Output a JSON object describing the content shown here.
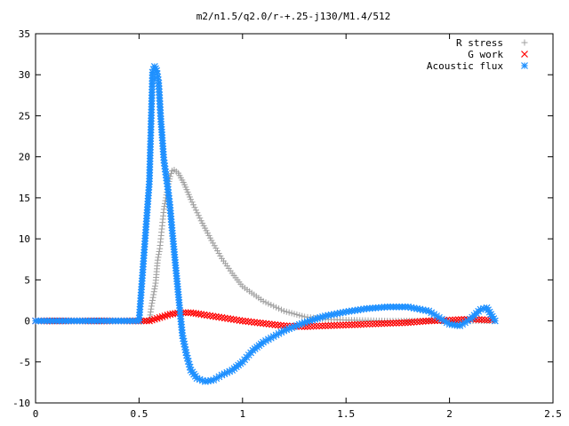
{
  "chart_data": {
    "type": "scatter",
    "title": "m2/n1.5/q2.0/r-+.25-j130/M1.4/512",
    "xlabel": "",
    "ylabel": "",
    "xlim": [
      0,
      2.5
    ],
    "ylim": [
      -10,
      35
    ],
    "x_ticks": [
      "0",
      "0.5",
      "1",
      "1.5",
      "2",
      "2.5"
    ],
    "y_ticks": [
      "-10",
      "-5",
      "0",
      "5",
      "10",
      "15",
      "20",
      "25",
      "30",
      "35"
    ],
    "grid": false,
    "legend_position": "top-right",
    "series": [
      {
        "name": "R stress",
        "marker": "plus",
        "color": "#a0a0a0",
        "points": [
          [
            0.0,
            0.0
          ],
          [
            0.1,
            0.0
          ],
          [
            0.2,
            0.0
          ],
          [
            0.3,
            0.0
          ],
          [
            0.4,
            0.0
          ],
          [
            0.5,
            0.0
          ],
          [
            0.55,
            0.0
          ],
          [
            0.56,
            1.8
          ],
          [
            0.57,
            3.2
          ],
          [
            0.58,
            4.6
          ],
          [
            0.585,
            6.0
          ],
          [
            0.59,
            7.4
          ],
          [
            0.6,
            8.8
          ],
          [
            0.605,
            10.0
          ],
          [
            0.61,
            11.2
          ],
          [
            0.615,
            12.4
          ],
          [
            0.62,
            13.6
          ],
          [
            0.63,
            15.0
          ],
          [
            0.64,
            16.4
          ],
          [
            0.65,
            17.6
          ],
          [
            0.66,
            18.3
          ],
          [
            0.67,
            18.4
          ],
          [
            0.69,
            18.0
          ],
          [
            0.72,
            16.6
          ],
          [
            0.75,
            14.8
          ],
          [
            0.8,
            12.2
          ],
          [
            0.85,
            9.8
          ],
          [
            0.9,
            7.6
          ],
          [
            0.95,
            5.8
          ],
          [
            1.0,
            4.2
          ],
          [
            1.1,
            2.4
          ],
          [
            1.2,
            1.2
          ],
          [
            1.3,
            0.5
          ],
          [
            1.4,
            0.2
          ],
          [
            1.5,
            0.1
          ],
          [
            1.7,
            0.0
          ],
          [
            1.9,
            0.0
          ],
          [
            2.1,
            0.0
          ],
          [
            2.22,
            0.0
          ]
        ]
      },
      {
        "name": "G work",
        "marker": "cross",
        "color": "#ff0000",
        "points": [
          [
            0.0,
            0.0
          ],
          [
            0.2,
            0.0
          ],
          [
            0.4,
            0.0
          ],
          [
            0.55,
            0.0
          ],
          [
            0.6,
            0.4
          ],
          [
            0.65,
            0.8
          ],
          [
            0.7,
            1.0
          ],
          [
            0.75,
            1.0
          ],
          [
            0.8,
            0.8
          ],
          [
            0.9,
            0.4
          ],
          [
            1.0,
            0.0
          ],
          [
            1.1,
            -0.3
          ],
          [
            1.2,
            -0.6
          ],
          [
            1.3,
            -0.7
          ],
          [
            1.4,
            -0.6
          ],
          [
            1.5,
            -0.5
          ],
          [
            1.6,
            -0.4
          ],
          [
            1.7,
            -0.3
          ],
          [
            1.8,
            -0.2
          ],
          [
            1.9,
            0.0
          ],
          [
            2.0,
            0.1
          ],
          [
            2.1,
            0.2
          ],
          [
            2.2,
            0.1
          ]
        ]
      },
      {
        "name": "Acoustic flux",
        "marker": "star",
        "color": "#1e90ff",
        "points": [
          [
            0.0,
            0.0
          ],
          [
            0.1,
            0.0
          ],
          [
            0.2,
            0.0
          ],
          [
            0.3,
            0.0
          ],
          [
            0.4,
            0.0
          ],
          [
            0.5,
            0.0
          ],
          [
            0.55,
            17.0
          ],
          [
            0.565,
            30.3
          ],
          [
            0.575,
            31.0
          ],
          [
            0.585,
            30.5
          ],
          [
            0.595,
            29.0
          ],
          [
            0.6,
            26.8
          ],
          [
            0.605,
            24.6
          ],
          [
            0.61,
            23.0
          ],
          [
            0.615,
            21.3
          ],
          [
            0.62,
            19.6
          ],
          [
            0.63,
            17.8
          ],
          [
            0.64,
            16.0
          ],
          [
            0.65,
            13.8
          ],
          [
            0.66,
            11.0
          ],
          [
            0.67,
            8.4
          ],
          [
            0.68,
            5.8
          ],
          [
            0.69,
            3.2
          ],
          [
            0.7,
            0.6
          ],
          [
            0.71,
            -1.8
          ],
          [
            0.73,
            -4.2
          ],
          [
            0.75,
            -6.0
          ],
          [
            0.78,
            -7.0
          ],
          [
            0.82,
            -7.4
          ],
          [
            0.86,
            -7.2
          ],
          [
            0.9,
            -6.6
          ],
          [
            0.95,
            -6.0
          ],
          [
            1.0,
            -5.0
          ],
          [
            1.05,
            -3.6
          ],
          [
            1.1,
            -2.6
          ],
          [
            1.2,
            -1.2
          ],
          [
            1.3,
            -0.2
          ],
          [
            1.4,
            0.6
          ],
          [
            1.5,
            1.1
          ],
          [
            1.6,
            1.5
          ],
          [
            1.7,
            1.7
          ],
          [
            1.8,
            1.7
          ],
          [
            1.9,
            1.2
          ],
          [
            1.95,
            0.4
          ],
          [
            2.0,
            -0.4
          ],
          [
            2.05,
            -0.6
          ],
          [
            2.1,
            0.2
          ],
          [
            2.15,
            1.4
          ],
          [
            2.18,
            1.6
          ],
          [
            2.2,
            0.8
          ],
          [
            2.22,
            0.0
          ]
        ]
      }
    ]
  }
}
